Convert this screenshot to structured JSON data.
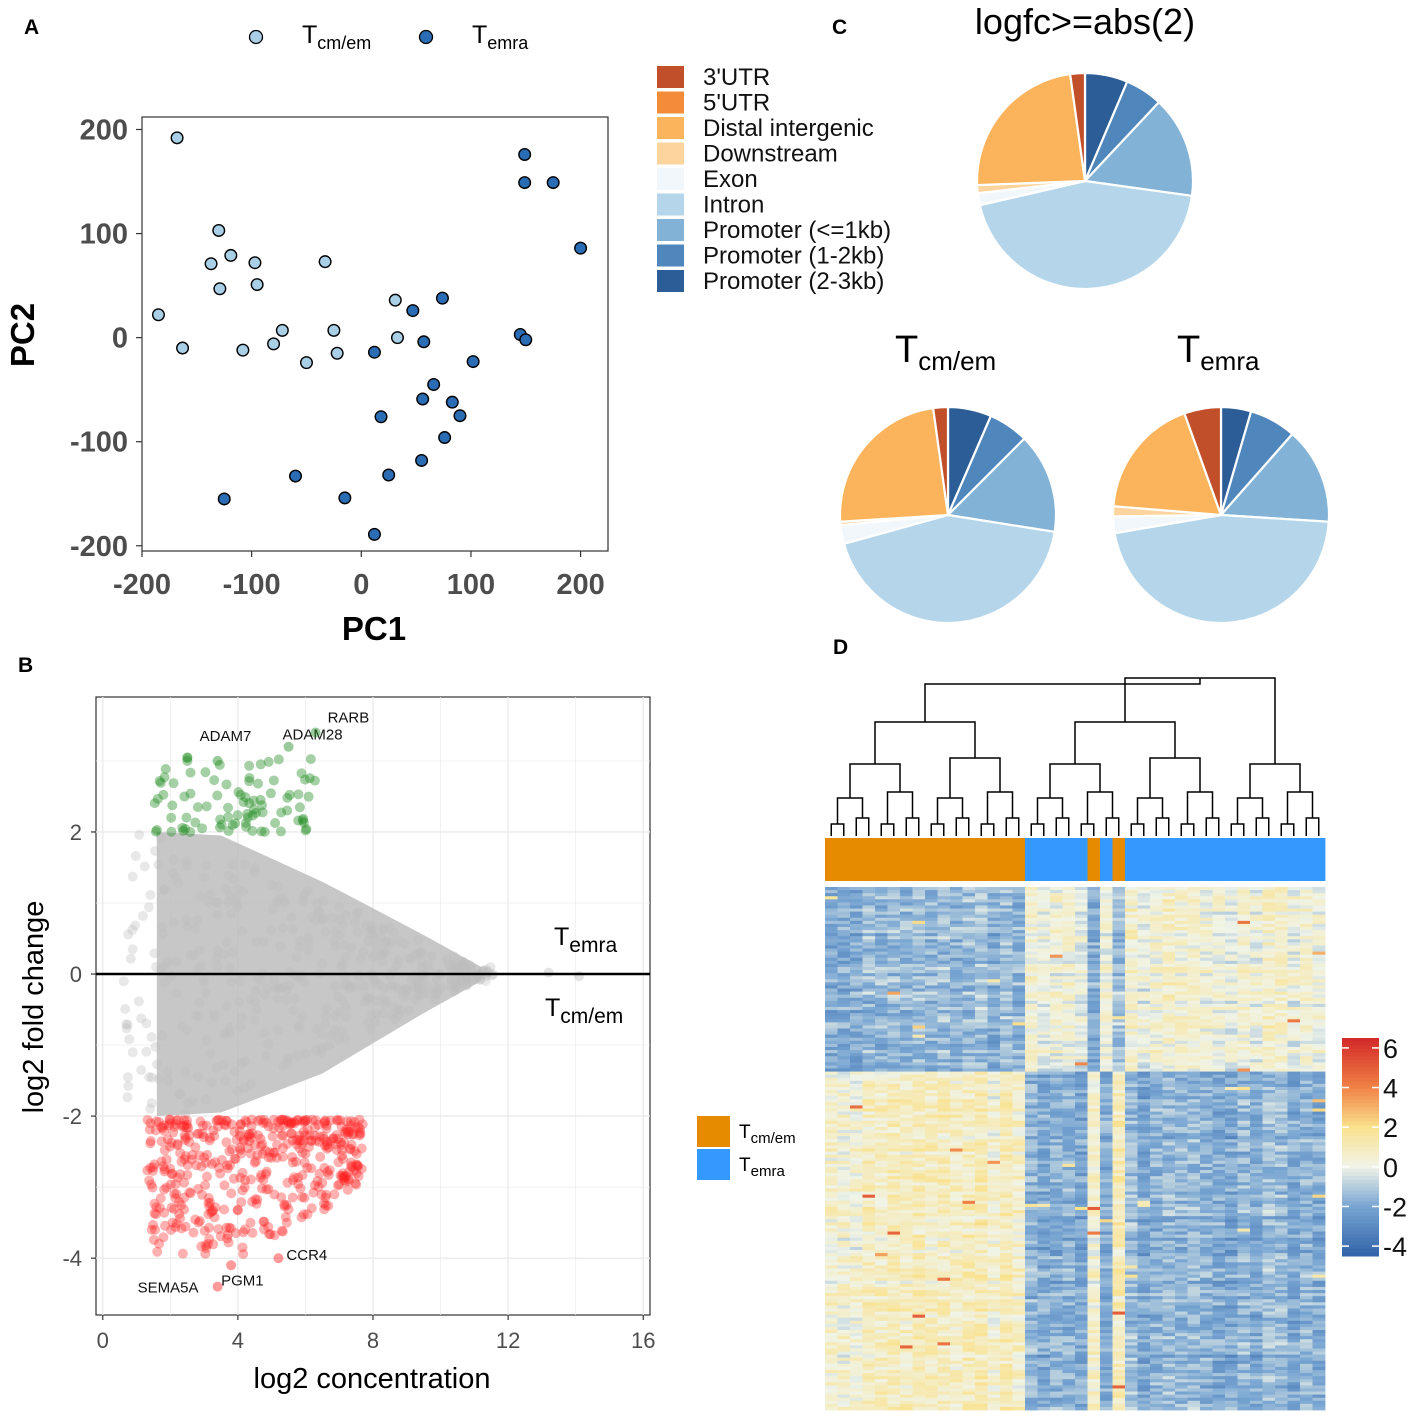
{
  "panels": {
    "a": "A",
    "b": "B",
    "c": "C",
    "d": "D"
  },
  "groups": {
    "tcm": {
      "base": "T",
      "sub": "cm/em",
      "color": "#a9cfe6",
      "heat_color": "#e68a00"
    },
    "temra": {
      "base": "T",
      "sub": "emra",
      "color": "#2a6db4",
      "heat_color": "#3399ff"
    }
  },
  "chart_data": [
    {
      "id": "pca",
      "type": "scatter",
      "xlabel": "PC1",
      "ylabel": "PC2",
      "xlim": [
        -200,
        225
      ],
      "ylim": [
        -205,
        212
      ],
      "xticks": [
        -200,
        -100,
        0,
        100,
        200
      ],
      "yticks": [
        -200,
        -100,
        0,
        100,
        200
      ],
      "legend": [
        "Tcm/em",
        "Temra"
      ],
      "legend_position": "top",
      "series": [
        {
          "name": "Tcm/em",
          "points": [
            [
              -168,
              192
            ],
            [
              -130,
              103
            ],
            [
              -119,
              79
            ],
            [
              -137,
              71
            ],
            [
              -129,
              47
            ],
            [
              -97,
              72
            ],
            [
              -95,
              51
            ],
            [
              -33,
              73
            ],
            [
              -185,
              22
            ],
            [
              -163,
              -10
            ],
            [
              -72,
              7
            ],
            [
              -80,
              -6
            ],
            [
              -108,
              -12
            ],
            [
              -50,
              -24
            ],
            [
              -25,
              7
            ],
            [
              -22,
              -15
            ],
            [
              31,
              36
            ],
            [
              33,
              0
            ]
          ]
        },
        {
          "name": "Temra",
          "points": [
            [
              149,
              176
            ],
            [
              149,
              149
            ],
            [
              175,
              149
            ],
            [
              200,
              86
            ],
            [
              74,
              38
            ],
            [
              47,
              26
            ],
            [
              145,
              3
            ],
            [
              150,
              -2
            ],
            [
              12,
              -14
            ],
            [
              57,
              -4
            ],
            [
              102,
              -23
            ],
            [
              66,
              -45
            ],
            [
              56,
              -59
            ],
            [
              83,
              -62
            ],
            [
              18,
              -76
            ],
            [
              90,
              -75
            ],
            [
              76,
              -96
            ],
            [
              55,
              -118
            ],
            [
              25,
              -132
            ],
            [
              -60,
              -133
            ],
            [
              -125,
              -155
            ],
            [
              -15,
              -154
            ],
            [
              12,
              -189
            ]
          ]
        }
      ]
    },
    {
      "id": "ma",
      "type": "scatter",
      "xlabel": "log2 concentration",
      "ylabel": "log2 fold change",
      "xlim": [
        -0.2,
        16.2
      ],
      "ylim": [
        -4.8,
        3.9
      ],
      "xticks": [
        0,
        4,
        8,
        12,
        16
      ],
      "yticks": [
        -4,
        -2,
        0,
        2
      ],
      "reference_line": 0,
      "annotations": {
        "up": "Temra",
        "down": "Tcm/em"
      },
      "thresholds": [
        -2,
        2
      ],
      "labeled_points": [
        {
          "label": "ADAM7",
          "x": 3.4,
          "y": 3.0
        },
        {
          "label": "ADAM28",
          "x": 5.5,
          "y": 3.2
        },
        {
          "label": "RARB",
          "x": 6.3,
          "y": 3.4
        },
        {
          "label": "CCR4",
          "x": 5.2,
          "y": -4.0
        },
        {
          "label": "SEMA5A",
          "x": 3.4,
          "y": -4.4
        },
        {
          "label": "PGM1",
          "x": 3.8,
          "y": -4.1
        }
      ],
      "series_colors": {
        "up": "#1f8a1f",
        "down": "#ff2020",
        "ns": "#bdbdbd"
      }
    },
    {
      "id": "pie_overall",
      "type": "pie",
      "title": "logfc>=abs(2)",
      "labels": [
        "3'UTR",
        "5'UTR",
        "Distal intergenic",
        "Downstream",
        "Exon",
        "Intron",
        "Promoter (<=1kb)",
        "Promoter (1-2kb)",
        "Promoter (2-3kb)"
      ],
      "colors": [
        "#c1502a",
        "#f28c38",
        "#fbb45c",
        "#fdd49e",
        "#f2f7fc",
        "#b5d6ea",
        "#82b2d6",
        "#4f86bc",
        "#2c5d96"
      ],
      "values": [
        2.2,
        0,
        23.4,
        1.2,
        1.8,
        44.2,
        15.2,
        5.6,
        6.4
      ]
    },
    {
      "id": "pie_tcm",
      "type": "pie",
      "title": "Tcm/em",
      "labels": [
        "3'UTR",
        "5'UTR",
        "Distal intergenic",
        "Downstream",
        "Exon",
        "Intron",
        "Promoter (<=1kb)",
        "Promoter (1-2kb)",
        "Promoter (2-3kb)"
      ],
      "colors": [
        "#c1502a",
        "#f28c38",
        "#fbb45c",
        "#fdd49e",
        "#f2f7fc",
        "#b5d6ea",
        "#82b2d6",
        "#4f86bc",
        "#2c5d96"
      ],
      "values": [
        2.2,
        0,
        23.8,
        0.5,
        2.8,
        43.2,
        15.0,
        6.0,
        6.5
      ]
    },
    {
      "id": "pie_temra",
      "type": "pie",
      "title": "Temra",
      "labels": [
        "3'UTR",
        "5'UTR",
        "Distal intergenic",
        "Downstream",
        "Exon",
        "Intron",
        "Promoter (<=1kb)",
        "Promoter (1-2kb)",
        "Promoter (2-3kb)"
      ],
      "colors": [
        "#c1502a",
        "#f28c38",
        "#fbb45c",
        "#fdd49e",
        "#f2f7fc",
        "#b5d6ea",
        "#82b2d6",
        "#4f86bc",
        "#2c5d96"
      ],
      "values": [
        5.5,
        0,
        18.2,
        1.5,
        2.5,
        46.3,
        14.5,
        7.0,
        4.5
      ]
    },
    {
      "id": "heatmap",
      "type": "heatmap",
      "colorbar_ticks": [
        -4,
        -2,
        0,
        2,
        4,
        6
      ],
      "range": [
        -4.5,
        6.5
      ],
      "sample_groups": "first 15 Tcm/em, then Temra with 2 interleaved Tcm/em columns",
      "legend": [
        "Tcm/em",
        "Temra"
      ]
    }
  ]
}
